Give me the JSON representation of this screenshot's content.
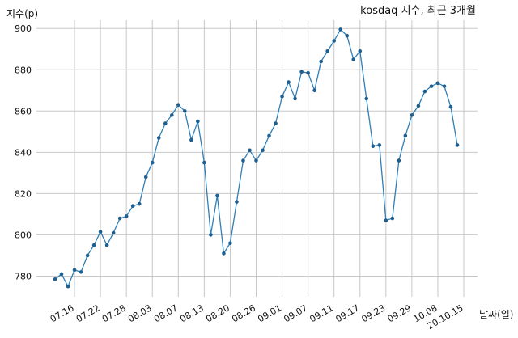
{
  "chart_data": {
    "type": "line",
    "title": "kosdaq 지수, 최근 3개월",
    "xlabel": "날짜(일)",
    "ylabel": "지수(p)",
    "grid": true,
    "ylim": [
      770,
      904
    ],
    "yticks": [
      780,
      800,
      820,
      840,
      860,
      880,
      900
    ],
    "x_tick_labels": [
      "07.16",
      "07.22",
      "07.28",
      "08.03",
      "08.07",
      "08.13",
      "08.20",
      "08.26",
      "09.01",
      "09.07",
      "09.11",
      "09.17",
      "09.23",
      "09.29",
      "10.08",
      "20.10.15"
    ],
    "x_tick_positions": [
      3,
      7,
      11,
      15,
      19,
      23,
      27,
      31,
      35,
      39,
      43,
      47,
      51,
      55,
      59,
      63
    ],
    "colors": {
      "line": "#2f7fb6",
      "marker": "#1f5f8f"
    },
    "series": [
      {
        "values": [
          778.5,
          781,
          775,
          783,
          782,
          790,
          795,
          801.5,
          795,
          801,
          808,
          809,
          814,
          815,
          828,
          835,
          847,
          854,
          858,
          863,
          860,
          846,
          855,
          835,
          800,
          819,
          791,
          796,
          816,
          836,
          841,
          836,
          841,
          848,
          854,
          867,
          874,
          866,
          879,
          878.5,
          870,
          884,
          889,
          894,
          899.5,
          896.5,
          885,
          889,
          866,
          843,
          843.5,
          807,
          808,
          836,
          848,
          858,
          862.5,
          869.5,
          872,
          873.5,
          872,
          862,
          843.5
        ]
      }
    ]
  }
}
